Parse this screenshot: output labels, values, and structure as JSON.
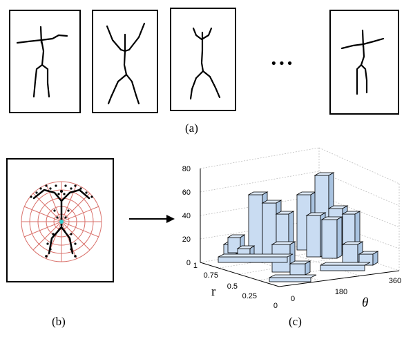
{
  "panel_a": {
    "label": "(a)",
    "ellipsis": "•••"
  },
  "panel_b": {
    "label": "(b)"
  },
  "panel_c": {
    "label": "(c)",
    "z_ticks": [
      "0",
      "20",
      "40",
      "60",
      "80"
    ],
    "r_ticks": [
      "1",
      "0.75",
      "0.5",
      "0.25",
      "0"
    ],
    "theta_ticks": [
      "0",
      "180",
      "360"
    ],
    "r_axis_label": "r",
    "theta_axis_label": "θ"
  },
  "colors": {
    "bar_fill": "#c9dcf2",
    "bar_edge": "#000000",
    "polar_grid": "#d9706a",
    "center_marker": "#33cccc"
  }
}
